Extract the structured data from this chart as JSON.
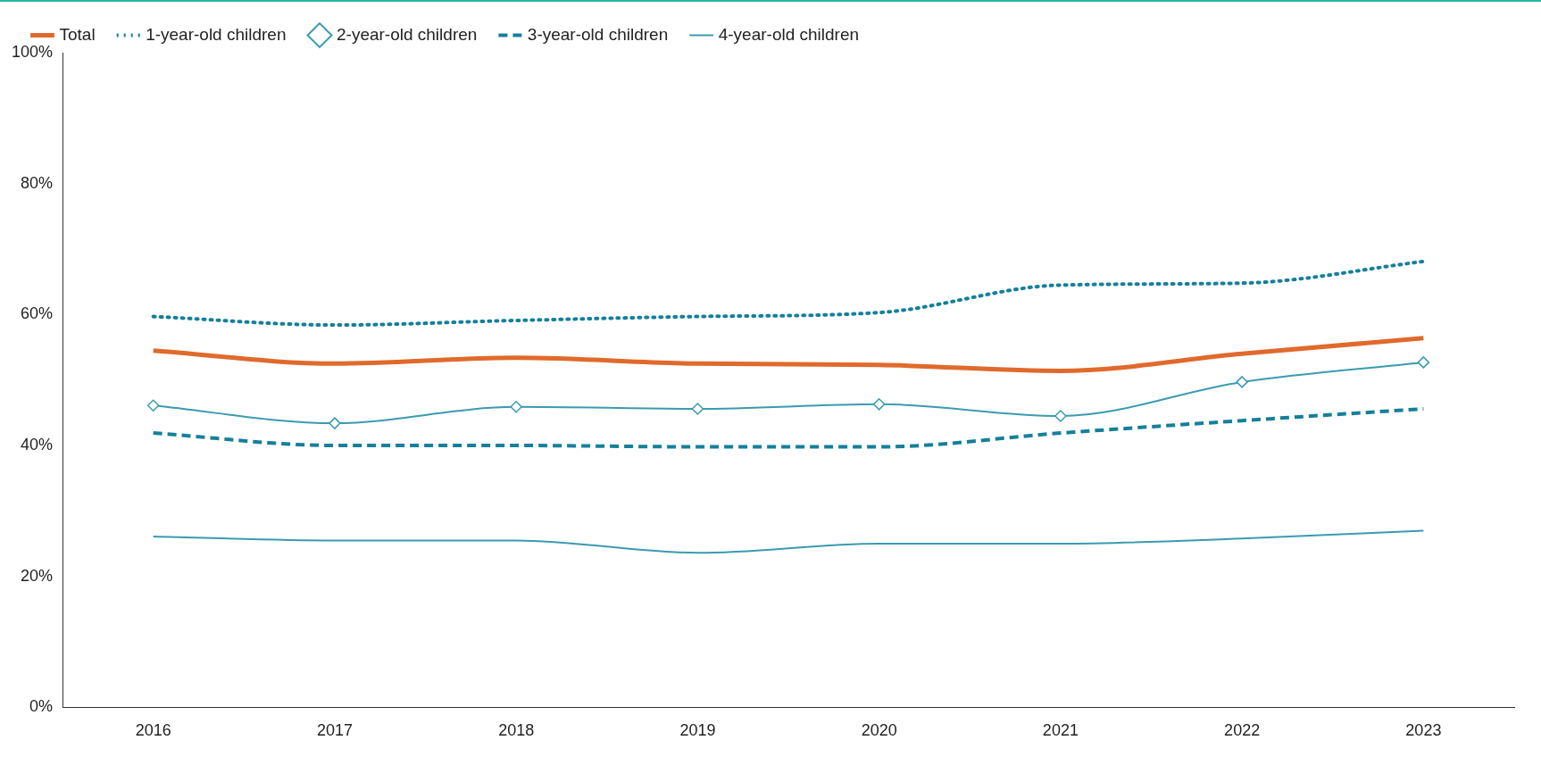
{
  "chart_data": {
    "type": "line",
    "categories": [
      "2016",
      "2017",
      "2018",
      "2019",
      "2020",
      "2021",
      "2022",
      "2023"
    ],
    "series": [
      {
        "name": "Total",
        "color": "#e06a2c",
        "line_style": "solid",
        "marker": "none",
        "values": [
          54.5,
          52.5,
          53.4,
          52.5,
          52.3,
          51.4,
          54,
          56.4
        ]
      },
      {
        "name": "1-year-old children",
        "color": "#14809a",
        "line_style": "dotted",
        "marker": "none",
        "values": [
          59.7,
          58.4,
          59.1,
          59.7,
          60.3,
          64.5,
          64.8,
          68.1
        ]
      },
      {
        "name": "2-year-old children",
        "color": "#3a9bb0",
        "line_style": "solid",
        "marker": "diamond",
        "values": [
          46.1,
          43.4,
          45.9,
          45.6,
          46.3,
          44.5,
          49.7,
          52.7
        ]
      },
      {
        "name": "3-year-old children",
        "color": "#14809a",
        "line_style": "dashed",
        "marker": "none",
        "values": [
          41.9,
          40,
          40,
          39.8,
          39.8,
          41.9,
          43.8,
          45.6
        ]
      },
      {
        "name": "4-year-old children",
        "color": "#3a9bb0",
        "line_style": "solid",
        "marker": "none",
        "values": [
          26.1,
          25.5,
          25.5,
          23.6,
          25,
          25,
          25.8,
          27
        ]
      }
    ],
    "ylim": [
      0,
      100
    ],
    "yticks": [
      {
        "value": 0,
        "label": "0%"
      },
      {
        "value": 20,
        "label": "20%"
      },
      {
        "value": 40,
        "label": "40%"
      },
      {
        "value": 60,
        "label": "60%"
      },
      {
        "value": 80,
        "label": "80%"
      },
      {
        "value": 100,
        "label": "100%"
      }
    ],
    "grid": false,
    "legend": "top left"
  }
}
